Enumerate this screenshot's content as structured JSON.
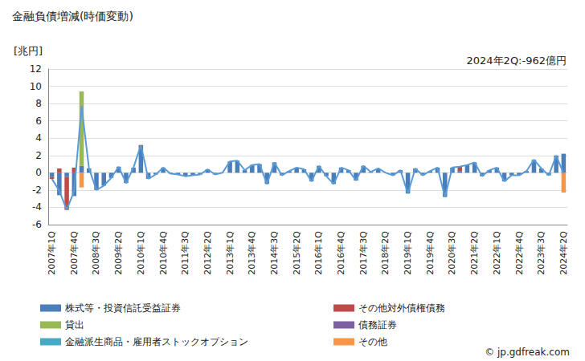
{
  "chart_data": {
    "type": "bar",
    "title": "金融負債増減(時価変動)",
    "ylabel": "[兆円]",
    "annotations": [
      "2024年2Q:-962億円",
      "© jp.gdfreak.com"
    ],
    "stacked": true,
    "grid": true,
    "legend": "bottom",
    "categories": [
      "2007年1Q",
      null,
      null,
      "2007年4Q",
      null,
      null,
      "2008年3Q",
      null,
      null,
      "2009年2Q",
      null,
      null,
      "2010年1Q",
      null,
      null,
      "2010年4Q",
      null,
      null,
      "2011年3Q",
      null,
      null,
      "2012年2Q",
      null,
      null,
      "2013年1Q",
      null,
      null,
      "2013年4Q",
      null,
      null,
      "2014年3Q",
      null,
      null,
      "2015年2Q",
      null,
      null,
      "2016年1Q",
      null,
      null,
      "2016年4Q",
      null,
      null,
      "2017年3Q",
      null,
      null,
      "2018年2Q",
      null,
      null,
      "2019年1Q",
      null,
      null,
      "2019年4Q",
      null,
      null,
      "2020年3Q",
      null,
      null,
      "2021年2Q",
      null,
      null,
      "2022年1Q",
      null,
      null,
      "2022年4Q",
      null,
      null,
      "2023年3Q",
      null,
      null,
      "2024年2Q"
    ],
    "ylim": [
      -6,
      12
    ],
    "yticks": [
      -6,
      -4,
      -2,
      0,
      2,
      4,
      6,
      8,
      10,
      12
    ],
    "series": [
      {
        "name": "株式等・投資信託受益証券",
        "color": "#4a7ebb",
        "values": [
          -0.5,
          -2.6,
          -0.5,
          -2.7,
          0.8,
          0.5,
          -2.0,
          -1.5,
          -0.6,
          0.7,
          -1.2,
          0.6,
          2.9,
          -0.7,
          -0.2,
          0.6,
          -0.1,
          -0.2,
          -0.4,
          -0.3,
          -0.2,
          0.4,
          -0.2,
          0.0,
          1.3,
          1.4,
          0.3,
          0.9,
          1.0,
          -1.3,
          1.2,
          -0.3,
          0.2,
          0.6,
          0.4,
          -1.0,
          0.8,
          -0.4,
          -1.3,
          0.6,
          0.3,
          -0.9,
          0.8,
          0.1,
          0.5,
          0.0,
          -0.3,
          0.3,
          -2.4,
          0.5,
          -0.3,
          0.2,
          0.6,
          -2.8,
          0.6,
          0.2,
          0.9,
          1.2,
          -0.4,
          0.3,
          0.6,
          -1.0,
          -0.3,
          -0.3,
          0.2,
          1.5,
          0.5,
          -0.3,
          2.0,
          2.2
        ]
      },
      {
        "name": "その他対外債権債務",
        "color": "#be4b48",
        "values": [
          -0.2,
          0.5,
          -3.8,
          0.6,
          0,
          0,
          0,
          0,
          0,
          0,
          0,
          0,
          0.3,
          0,
          0,
          0,
          0,
          0,
          0,
          0,
          0,
          0,
          0,
          0,
          0,
          0,
          0,
          0,
          0,
          0,
          0,
          0,
          0,
          0,
          0,
          0,
          0,
          0,
          0,
          0,
          0,
          0,
          0,
          0,
          0,
          0,
          0,
          0,
          0,
          0,
          0,
          0,
          0,
          0,
          0,
          0.5,
          0,
          0,
          0,
          0,
          0,
          0,
          0,
          0,
          0,
          0,
          0,
          0,
          0,
          0
        ]
      },
      {
        "name": "貸出",
        "color": "#98b954",
        "values": [
          0,
          0,
          0,
          0,
          8.6,
          0,
          0,
          0,
          0,
          0,
          0,
          0,
          0,
          0,
          0,
          0,
          0,
          0,
          0,
          0,
          0,
          0,
          0,
          0,
          0,
          0,
          0,
          0,
          0,
          0,
          0,
          0,
          0,
          0,
          0,
          0,
          0,
          0,
          0,
          0,
          0,
          0,
          0,
          0,
          0,
          0,
          0,
          0,
          0,
          0,
          0,
          0,
          0,
          0,
          0,
          0,
          0,
          0,
          0,
          0,
          0,
          0,
          0,
          0,
          0,
          0,
          0,
          0,
          0,
          0
        ]
      },
      {
        "name": "債務証券",
        "color": "#7d60a0",
        "values": [
          0,
          0,
          0,
          0,
          0,
          0,
          0,
          0,
          0,
          0,
          0,
          0,
          0,
          0,
          0,
          0,
          0,
          0,
          0,
          0,
          0,
          0,
          0,
          0,
          0,
          0,
          0,
          0,
          0,
          0,
          0,
          0,
          0,
          0,
          0,
          0,
          0,
          0,
          0,
          0,
          0,
          0,
          0,
          0,
          0,
          0,
          0,
          0,
          0,
          0,
          0,
          0,
          0,
          0,
          0,
          0,
          0,
          0,
          0,
          0,
          0,
          0,
          0,
          0,
          0,
          0,
          0,
          0,
          0,
          0
        ]
      },
      {
        "name": "金融派生商品・雇用者ストックオプション",
        "color": "#46aac5",
        "values": [
          0,
          0,
          0,
          0,
          0,
          0,
          0,
          0,
          0,
          0,
          0,
          0,
          0,
          0,
          0,
          0,
          0,
          0,
          0,
          0,
          0,
          0,
          0,
          0,
          0,
          0,
          0,
          0,
          0,
          0,
          0,
          0,
          0,
          0,
          0,
          0,
          0,
          0,
          0,
          0,
          0,
          0,
          0,
          0,
          0,
          0,
          0,
          0,
          0,
          0,
          0,
          0,
          0,
          0,
          0,
          0,
          0,
          0,
          0,
          0,
          0,
          0,
          0,
          0,
          0,
          0,
          0,
          0,
          0,
          0
        ]
      },
      {
        "name": "その他",
        "color": "#f79646",
        "values": [
          0,
          0,
          0,
          0,
          -1.7,
          0,
          0,
          0,
          0,
          0,
          0,
          0,
          0,
          0,
          0,
          0,
          0,
          0,
          0,
          0,
          0,
          0,
          0,
          0,
          0,
          0,
          0,
          0,
          0,
          0,
          0,
          0,
          0,
          0,
          0,
          0,
          0,
          0,
          0,
          0,
          0,
          0,
          0,
          0,
          0,
          0,
          0,
          0,
          0,
          0,
          0,
          0,
          0,
          0,
          0,
          0,
          0,
          0,
          0,
          0,
          0,
          0,
          0,
          0,
          0,
          0,
          0,
          0,
          0,
          -2.2962
        ]
      }
    ]
  }
}
